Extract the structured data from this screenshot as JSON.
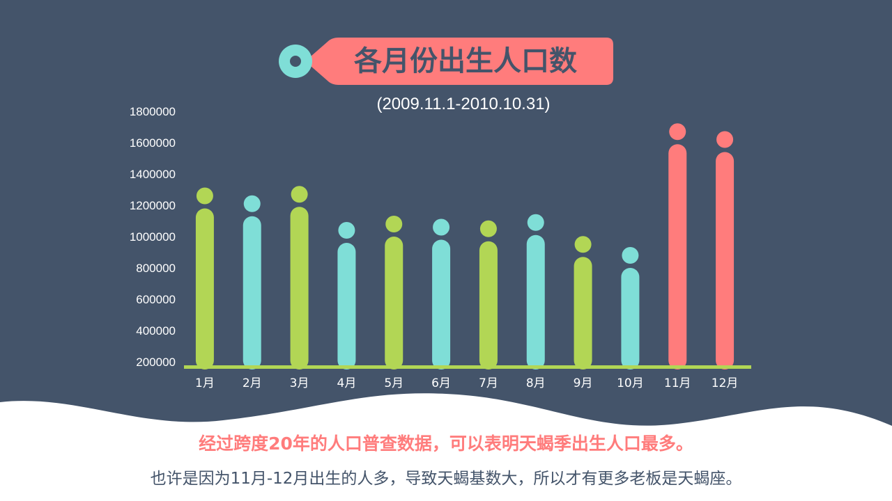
{
  "colors": {
    "background": "#44546a",
    "green": "#b2d655",
    "teal": "#7fded7",
    "coral": "#ff7c7c",
    "baseline": "#b2d655",
    "wave": "#ffffff"
  },
  "title_tag": {
    "icon": "tag-hole-icon"
  },
  "chart_data": {
    "type": "bar",
    "title": "各月份出生人口数",
    "subtitle": "(2009.11.1-2010.10.31)",
    "xlabel": "",
    "ylabel": "",
    "ylim": [
      200000,
      1800000
    ],
    "yticks": [
      "200000",
      "400000",
      "600000",
      "800000",
      "1000000",
      "1200000",
      "1400000",
      "1600000",
      "1800000"
    ],
    "categories": [
      "1月",
      "2月",
      "3月",
      "4月",
      "5月",
      "6月",
      "7月",
      "8月",
      "9月",
      "10月",
      "11月",
      "12月"
    ],
    "values": [
      1180000,
      1130000,
      1190000,
      960000,
      1000000,
      980000,
      970000,
      1010000,
      870000,
      800000,
      1590000,
      1540000
    ],
    "bar_colors": [
      "green",
      "teal",
      "green",
      "teal",
      "green",
      "teal",
      "green",
      "teal",
      "green",
      "teal",
      "coral",
      "coral"
    ],
    "grid": false,
    "legend": "none"
  },
  "footer": {
    "line1": "经过跨度20年的人口普查数据，可以表明天蝎季出生人口最多。",
    "line2": "也许是因为11月-12月出生的人多，导致天蝎基数大，所以才有更多老板是天蝎座。"
  }
}
